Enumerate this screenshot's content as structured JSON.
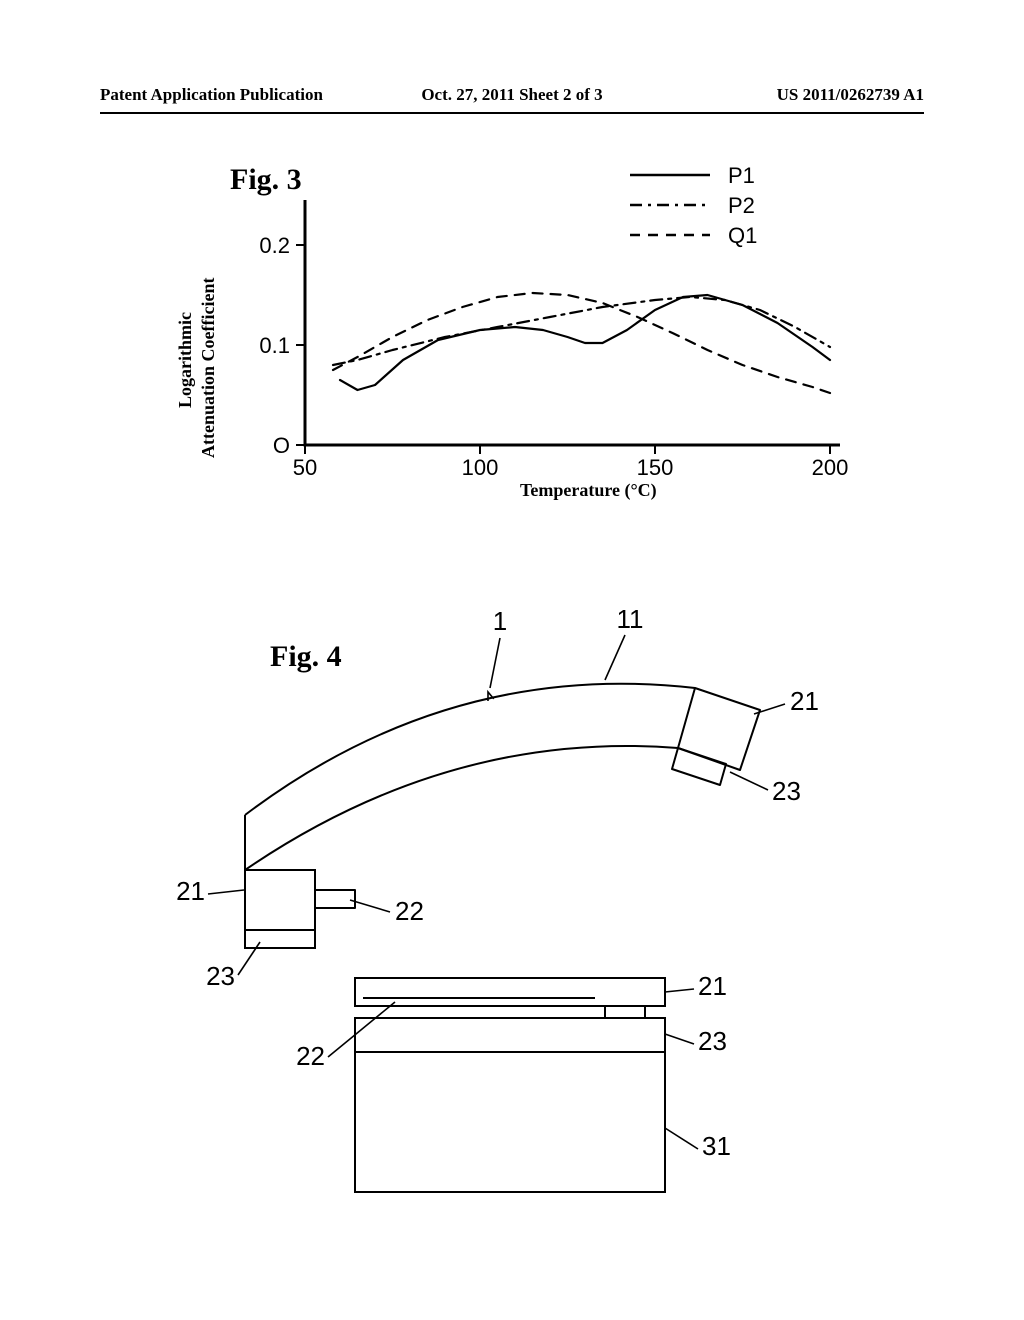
{
  "header": {
    "left": "Patent Application Publication",
    "mid": "Oct. 27, 2011  Sheet 2 of 3",
    "right": "US 2011/0262739 A1"
  },
  "fig3": {
    "label": "Fig. 3",
    "type": "line",
    "x_axis": {
      "label": "Temperature (°C)",
      "ticks": [
        50,
        100,
        150,
        200
      ],
      "lim": [
        50,
        200
      ]
    },
    "y_axis": {
      "label_line1": "Logarithmic",
      "label_line2": "Attenuation Coefficient",
      "ticks": [
        0,
        0.1,
        0.2
      ],
      "lim": [
        0,
        0.23
      ]
    },
    "axis_color": "#000000",
    "line_color": "#000000",
    "line_width": 2.2,
    "legend": {
      "items": [
        {
          "name": "P1",
          "dash": "solid"
        },
        {
          "name": "P2",
          "dash": "dashdot"
        },
        {
          "name": "Q1",
          "dash": "dash"
        }
      ]
    },
    "series": {
      "P1_points": [
        [
          60,
          0.065
        ],
        [
          65,
          0.055
        ],
        [
          70,
          0.06
        ],
        [
          78,
          0.085
        ],
        [
          88,
          0.105
        ],
        [
          100,
          0.115
        ],
        [
          110,
          0.118
        ],
        [
          118,
          0.115
        ],
        [
          125,
          0.108
        ],
        [
          130,
          0.102
        ],
        [
          135,
          0.102
        ],
        [
          142,
          0.115
        ],
        [
          150,
          0.135
        ],
        [
          158,
          0.148
        ],
        [
          165,
          0.15
        ],
        [
          175,
          0.14
        ],
        [
          185,
          0.122
        ],
        [
          195,
          0.098
        ],
        [
          200,
          0.085
        ]
      ],
      "P2_points": [
        [
          58,
          0.08
        ],
        [
          65,
          0.085
        ],
        [
          75,
          0.095
        ],
        [
          90,
          0.108
        ],
        [
          105,
          0.118
        ],
        [
          120,
          0.128
        ],
        [
          135,
          0.138
        ],
        [
          150,
          0.145
        ],
        [
          160,
          0.148
        ],
        [
          170,
          0.145
        ],
        [
          180,
          0.135
        ],
        [
          190,
          0.118
        ],
        [
          200,
          0.098
        ]
      ],
      "Q1_points": [
        [
          58,
          0.075
        ],
        [
          65,
          0.088
        ],
        [
          75,
          0.108
        ],
        [
          85,
          0.125
        ],
        [
          95,
          0.138
        ],
        [
          105,
          0.148
        ],
        [
          115,
          0.152
        ],
        [
          125,
          0.15
        ],
        [
          135,
          0.142
        ],
        [
          145,
          0.128
        ],
        [
          155,
          0.112
        ],
        [
          165,
          0.095
        ],
        [
          175,
          0.08
        ],
        [
          185,
          0.068
        ],
        [
          195,
          0.058
        ],
        [
          200,
          0.052
        ]
      ]
    }
  },
  "fig4": {
    "label": "Fig. 4",
    "type": "diagram",
    "line_color": "#000000",
    "line_width": 2.0,
    "callouts": {
      "top_1": "1",
      "top_11": "11",
      "right_21": "21",
      "right_23": "23",
      "left_21": "21",
      "left_23": "23",
      "mid_22": "22",
      "bot_21": "21",
      "bot_23": "23",
      "bot_22": "22",
      "bot_31": "31"
    }
  }
}
